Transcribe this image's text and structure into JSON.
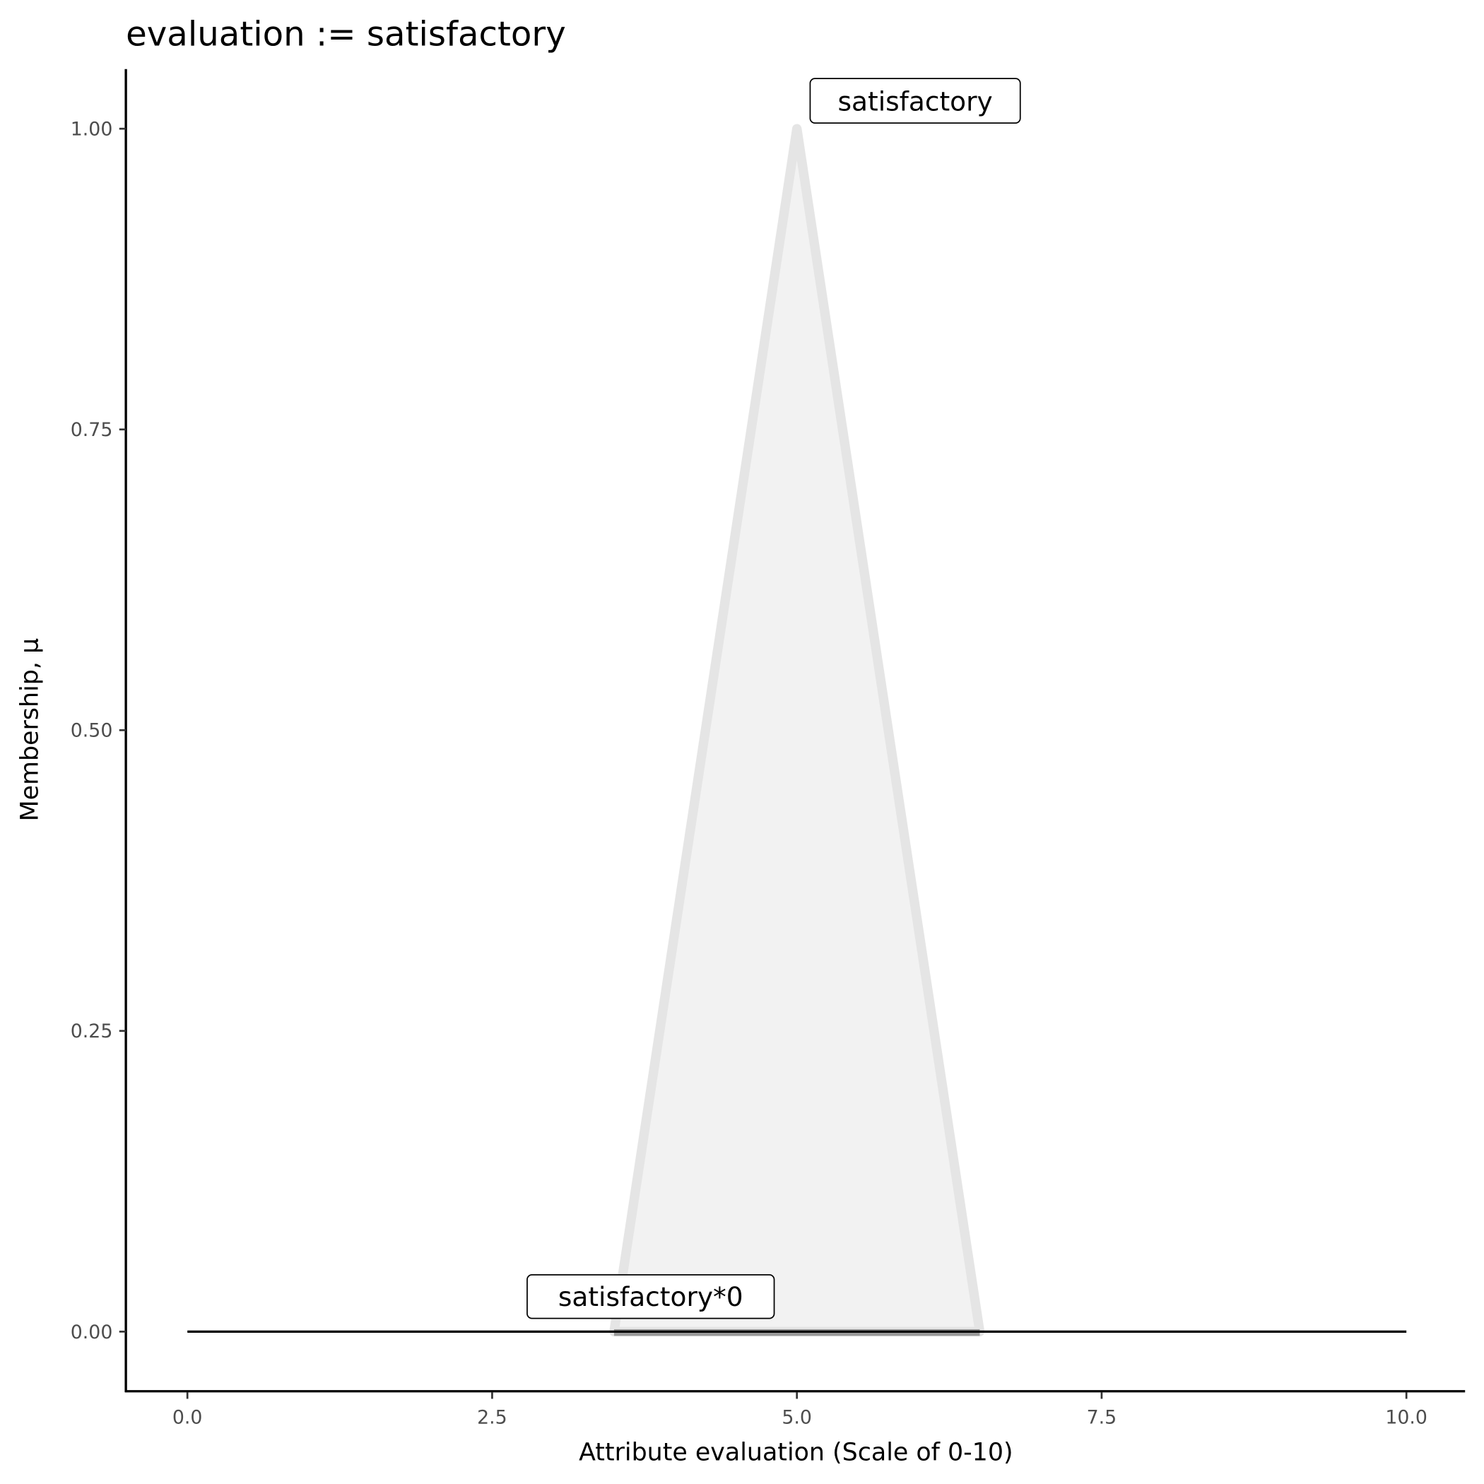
{
  "chart_data": {
    "type": "line",
    "title": "evaluation := satisfactory",
    "xlabel": "Attribute evaluation (Scale of 0-10)",
    "ylabel": "Membership, μ",
    "xlim": [
      0,
      10
    ],
    "ylim": [
      0,
      1
    ],
    "x_ticks": [
      "0.0",
      "2.5",
      "5.0",
      "7.5",
      "10.0"
    ],
    "y_ticks": [
      "0.00",
      "0.25",
      "0.50",
      "0.75",
      "1.00"
    ],
    "grid": false,
    "series": [
      {
        "name": "satisfactory",
        "x": [
          3.5,
          5,
          6.5
        ],
        "y": [
          0,
          1,
          0
        ],
        "fill": "#f2f2f2",
        "stroke": "#e5e5e5"
      },
      {
        "name": "satisfactory*0",
        "x": [
          3.5,
          6.5
        ],
        "y": [
          0,
          0
        ],
        "stroke": "#999999"
      },
      {
        "x": [
          0,
          10
        ],
        "y": [
          0,
          0
        ],
        "stroke": "#000000"
      }
    ],
    "annotations": [
      {
        "text": "satisfactory",
        "x": 5,
        "y": 1
      },
      {
        "text": "satisfactory*0",
        "x": 3.5,
        "y": 0
      }
    ]
  }
}
